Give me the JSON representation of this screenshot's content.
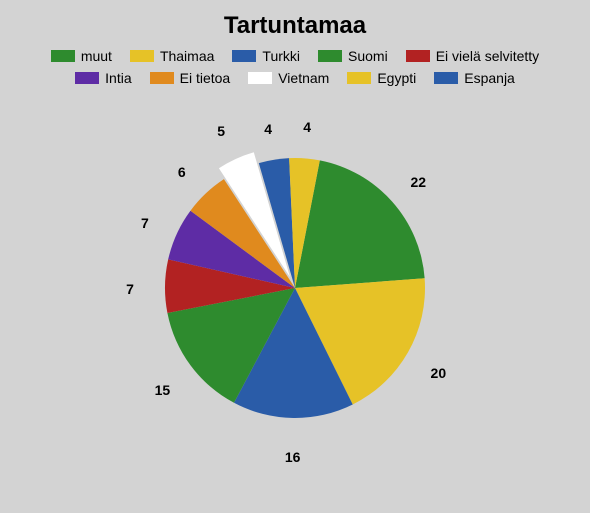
{
  "chart": {
    "type": "pie",
    "title": "Tartuntamaa",
    "title_fontsize": 24,
    "background_color": "#d3d3d3",
    "pie_radius": 130,
    "label_fontsize": 14,
    "start_angle_deg": -79,
    "pull_out_slice_index": 7,
    "pull_out_distance": 12,
    "legend": [
      {
        "label": "muut",
        "color": "#2e8b2e"
      },
      {
        "label": "Thaimaa",
        "color": "#e6c227"
      },
      {
        "label": "Turkki",
        "color": "#2a5ca8"
      },
      {
        "label": "Suomi",
        "color": "#2e8b2e"
      },
      {
        "label": "Ei vielä selvitetty",
        "color": "#b22222"
      },
      {
        "label": "Intia",
        "color": "#5e2ca5"
      },
      {
        "label": "Ei tietoa",
        "color": "#e08a1e"
      },
      {
        "label": "Vietnam",
        "color": "#ffffff"
      },
      {
        "label": "Egypti",
        "color": "#e6c227"
      },
      {
        "label": "Espanja",
        "color": "#2a5ca8"
      }
    ],
    "slices": [
      {
        "label": "muut",
        "value": 22,
        "color": "#2e8b2e"
      },
      {
        "label": "Thaimaa",
        "value": 20,
        "color": "#e6c227"
      },
      {
        "label": "Turkki",
        "value": 16,
        "color": "#2a5ca8"
      },
      {
        "label": "Suomi",
        "value": 15,
        "color": "#2e8b2e"
      },
      {
        "label": "Ei vielä selvitetty",
        "value": 7,
        "color": "#b22222"
      },
      {
        "label": "Intia",
        "value": 7,
        "color": "#5e2ca5"
      },
      {
        "label": "Ei tietoa",
        "value": 6,
        "color": "#e08a1e"
      },
      {
        "label": "Vietnam",
        "value": 5,
        "color": "#ffffff"
      },
      {
        "label": "Espanja",
        "value": 4,
        "color": "#2a5ca8"
      },
      {
        "label": "Egypti",
        "value": 4,
        "color": "#e6c227"
      }
    ]
  }
}
